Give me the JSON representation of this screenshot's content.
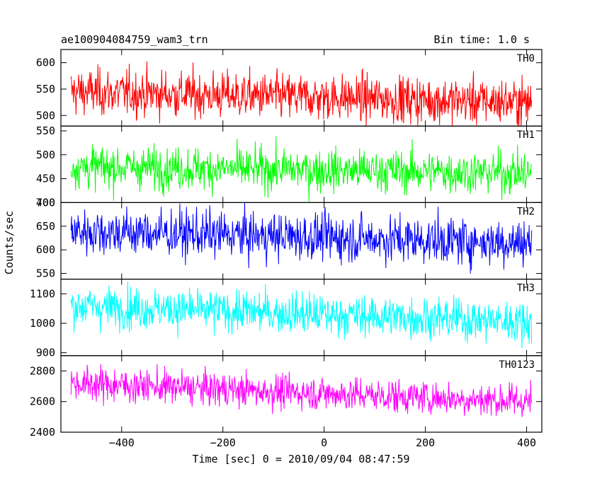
{
  "chart_data": {
    "type": "line",
    "title": "ae100904084759_wam3_trn",
    "bin_time": "Bin time: 1.0 s",
    "xlabel": "Time [sec] 0 = 2010/09/04 08:47:59",
    "ylabel": "Counts/sec",
    "x_range": [
      -520,
      430
    ],
    "x_ticks": [
      -400,
      -200,
      0,
      200,
      400
    ],
    "x_data_range": [
      -500,
      410
    ],
    "x_step": 1,
    "colors": {
      "TH0": "#ff0000",
      "TH1": "#00ff00",
      "TH2": "#0000ff",
      "TH3": "#00ffff",
      "TH0123": "#ff00ff"
    },
    "panels": [
      {
        "name": "TH0",
        "ylim": [
          480,
          625
        ],
        "yticks": [
          500,
          550,
          600
        ],
        "mean_start": 545,
        "mean_end": 525,
        "noise": 22,
        "envelope_low": 480,
        "envelope_high": 620
      },
      {
        "name": "TH1",
        "ylim": [
          400,
          560
        ],
        "yticks": [
          400,
          450,
          500,
          550
        ],
        "mean_start": 475,
        "mean_end": 462,
        "noise": 22,
        "envelope_low": 400,
        "envelope_high": 555
      },
      {
        "name": "TH2",
        "ylim": [
          538,
          700
        ],
        "yticks": [
          550,
          600,
          650,
          700
        ],
        "mean_start": 640,
        "mean_end": 615,
        "noise": 25,
        "envelope_low": 540,
        "envelope_high": 700
      },
      {
        "name": "TH3",
        "ylim": [
          890,
          1150
        ],
        "yticks": [
          900,
          1000,
          1100
        ],
        "mean_start": 1060,
        "mean_end": 1005,
        "noise": 35,
        "envelope_low": 895,
        "envelope_high": 1150
      },
      {
        "name": "TH0123",
        "ylim": [
          2400,
          2900
        ],
        "yticks": [
          2400,
          2600,
          2800
        ],
        "mean_start": 2720,
        "mean_end": 2600,
        "noise": 55,
        "envelope_low": 2410,
        "envelope_high": 2890
      }
    ]
  }
}
